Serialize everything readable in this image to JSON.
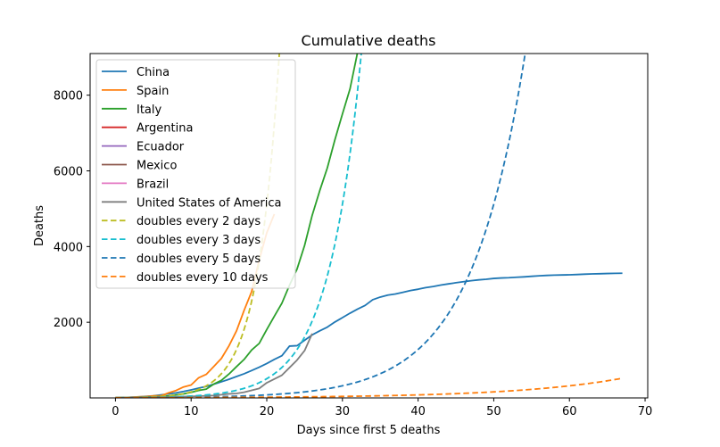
{
  "chart_data": {
    "type": "line",
    "title": "Cumulative deaths",
    "xlabel": "Days since first 5 deaths",
    "ylabel": "Deaths",
    "xlim": [
      -3.35,
      70.35
    ],
    "ylim": [
      0,
      9100
    ],
    "xticks": [
      0,
      10,
      20,
      30,
      40,
      50,
      60,
      70
    ],
    "yticks": [
      2000,
      4000,
      6000,
      8000
    ],
    "grid": false,
    "legend_position": "upper-left",
    "series": [
      {
        "name": "China",
        "color": "#1f77b4",
        "dash": "solid",
        "points": [
          [
            0,
            6
          ],
          [
            1,
            9
          ],
          [
            2,
            17
          ],
          [
            3,
            25
          ],
          [
            4,
            41
          ],
          [
            5,
            56
          ],
          [
            6,
            80
          ],
          [
            7,
            106
          ],
          [
            8,
            132
          ],
          [
            9,
            170
          ],
          [
            10,
            213
          ],
          [
            11,
            259
          ],
          [
            12,
            304
          ],
          [
            13,
            362
          ],
          [
            14,
            426
          ],
          [
            15,
            492
          ],
          [
            16,
            565
          ],
          [
            17,
            638
          ],
          [
            18,
            724
          ],
          [
            19,
            813
          ],
          [
            20,
            910
          ],
          [
            21,
            1018
          ],
          [
            22,
            1115
          ],
          [
            23,
            1369
          ],
          [
            24,
            1381
          ],
          [
            25,
            1524
          ],
          [
            26,
            1666
          ],
          [
            27,
            1772
          ],
          [
            28,
            1870
          ],
          [
            29,
            2006
          ],
          [
            30,
            2121
          ],
          [
            31,
            2239
          ],
          [
            32,
            2348
          ],
          [
            33,
            2445
          ],
          [
            34,
            2595
          ],
          [
            35,
            2665
          ],
          [
            36,
            2717
          ],
          [
            37,
            2746
          ],
          [
            38,
            2790
          ],
          [
            39,
            2837
          ],
          [
            40,
            2872
          ],
          [
            41,
            2915
          ],
          [
            42,
            2945
          ],
          [
            43,
            2981
          ],
          [
            44,
            3013
          ],
          [
            45,
            3043
          ],
          [
            46,
            3070
          ],
          [
            47,
            3097
          ],
          [
            48,
            3119
          ],
          [
            49,
            3136
          ],
          [
            50,
            3158
          ],
          [
            51,
            3169
          ],
          [
            52,
            3176
          ],
          [
            53,
            3189
          ],
          [
            54,
            3199
          ],
          [
            55,
            3213
          ],
          [
            56,
            3226
          ],
          [
            57,
            3237
          ],
          [
            58,
            3245
          ],
          [
            59,
            3249
          ],
          [
            60,
            3253
          ],
          [
            61,
            3261
          ],
          [
            62,
            3270
          ],
          [
            63,
            3277
          ],
          [
            64,
            3281
          ],
          [
            65,
            3287
          ],
          [
            66,
            3292
          ],
          [
            67,
            3295
          ]
        ]
      },
      {
        "name": "Spain",
        "color": "#ff7f0e",
        "dash": "solid",
        "points": [
          [
            0,
            5
          ],
          [
            1,
            10
          ],
          [
            2,
            17
          ],
          [
            3,
            28
          ],
          [
            4,
            35
          ],
          [
            5,
            54
          ],
          [
            6,
            55
          ],
          [
            7,
            133
          ],
          [
            8,
            195
          ],
          [
            9,
            289
          ],
          [
            10,
            342
          ],
          [
            11,
            533
          ],
          [
            12,
            623
          ],
          [
            13,
            830
          ],
          [
            14,
            1043
          ],
          [
            15,
            1375
          ],
          [
            16,
            1772
          ],
          [
            17,
            2311
          ],
          [
            18,
            2808
          ],
          [
            19,
            3647
          ],
          [
            20,
            4365
          ],
          [
            21,
            4858
          ]
        ]
      },
      {
        "name": "Italy",
        "color": "#2ca02c",
        "dash": "solid",
        "points": [
          [
            0,
            7
          ],
          [
            1,
            10
          ],
          [
            2,
            12
          ],
          [
            3,
            17
          ],
          [
            4,
            21
          ],
          [
            5,
            29
          ],
          [
            6,
            34
          ],
          [
            7,
            52
          ],
          [
            8,
            79
          ],
          [
            9,
            107
          ],
          [
            10,
            148
          ],
          [
            11,
            197
          ],
          [
            12,
            233
          ],
          [
            13,
            366
          ],
          [
            14,
            463
          ],
          [
            15,
            631
          ],
          [
            16,
            827
          ],
          [
            17,
            1016
          ],
          [
            18,
            1266
          ],
          [
            19,
            1441
          ],
          [
            20,
            1809
          ],
          [
            21,
            2158
          ],
          [
            22,
            2503
          ],
          [
            23,
            2978
          ],
          [
            24,
            3405
          ],
          [
            25,
            4032
          ],
          [
            26,
            4825
          ],
          [
            27,
            5476
          ],
          [
            28,
            6077
          ],
          [
            29,
            6820
          ],
          [
            30,
            7503
          ],
          [
            31,
            8165
          ],
          [
            32,
            9134
          ]
        ]
      },
      {
        "name": "Argentina",
        "color": "#d62728",
        "dash": "solid",
        "points": []
      },
      {
        "name": "Ecuador",
        "color": "#9467bd",
        "dash": "solid",
        "points": []
      },
      {
        "name": "Mexico",
        "color": "#8c564b",
        "dash": "solid",
        "points": []
      },
      {
        "name": "Brazil",
        "color": "#e377c2",
        "dash": "solid",
        "points": []
      },
      {
        "name": "United States of America",
        "color": "#7f7f7f",
        "dash": "solid",
        "points": [
          [
            0,
            6
          ],
          [
            1,
            7
          ],
          [
            2,
            11
          ],
          [
            3,
            12
          ],
          [
            4,
            14
          ],
          [
            5,
            17
          ],
          [
            6,
            21
          ],
          [
            7,
            22
          ],
          [
            8,
            28
          ],
          [
            9,
            36
          ],
          [
            10,
            40
          ],
          [
            11,
            47
          ],
          [
            12,
            54
          ],
          [
            13,
            63
          ],
          [
            14,
            85
          ],
          [
            15,
            108
          ],
          [
            16,
            118
          ],
          [
            17,
            150
          ],
          [
            18,
            200
          ],
          [
            19,
            250
          ],
          [
            20,
            400
          ],
          [
            21,
            500
          ],
          [
            22,
            600
          ],
          [
            23,
            800
          ],
          [
            24,
            1000
          ],
          [
            25,
            1250
          ],
          [
            26,
            1700
          ]
        ]
      },
      {
        "name": "doubles every 2 days",
        "color": "#bcbd22",
        "dash": "dashed",
        "base": 5,
        "doubling_days": 2,
        "x_range": [
          0,
          26.3
        ]
      },
      {
        "name": "doubles every 3 days",
        "color": "#17becf",
        "dash": "dashed",
        "base": 5,
        "doubling_days": 3,
        "x_range": [
          0,
          39.3
        ]
      },
      {
        "name": "doubles every 5 days",
        "color": "#1f77b4",
        "dash": "dashed",
        "base": 5,
        "doubling_days": 5,
        "x_range": [
          0,
          67
        ]
      },
      {
        "name": "doubles every 10 days",
        "color": "#ff7f0e",
        "dash": "dashed",
        "base": 5,
        "doubling_days": 10,
        "x_range": [
          0,
          67
        ]
      }
    ]
  }
}
